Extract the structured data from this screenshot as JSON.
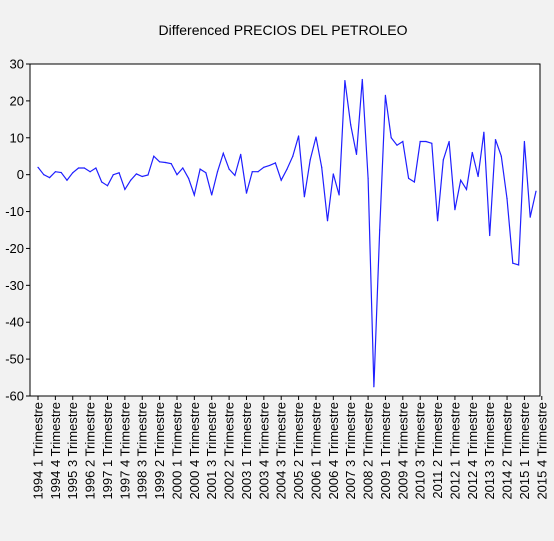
{
  "chart_data": {
    "type": "line",
    "title": "Differenced PRECIOS DEL PETROLEO",
    "xlabel": "",
    "ylabel": "",
    "ylim": [
      -60,
      30
    ],
    "yticks": [
      30,
      20,
      10,
      0,
      -10,
      -20,
      -30,
      -40,
      -50,
      -60
    ],
    "ytick_labels": [
      "30",
      "20",
      "10",
      "0",
      "-10",
      "-20",
      "-30",
      "-40",
      "-50",
      "-60"
    ],
    "grid": false,
    "legend": "none",
    "series_color": "#1f1fff",
    "xtick_labels": [
      "1994 1 Trimestre",
      "1994 4 Trimestre",
      "1995 3 Trimestre",
      "1996 2 Trimestre",
      "1997 1 Trimestre",
      "1997 4 Trimestre",
      "1998 3 Trimestre",
      "1999 2 Trimestre",
      "2000 1 Trimestre",
      "2000 4 Trimestre",
      "2001 3 Trimestre",
      "2002 2 Trimestre",
      "2003 1 Trimestre",
      "2003 4 Trimestre",
      "2004 3 Trimestre",
      "2005 2 Trimestre",
      "2006 1 Trimestre",
      "2006 4 Trimestre",
      "2007 3 Trimestre",
      "2008 2 Trimestre",
      "2009 1 Trimestre",
      "2009 4 Trimestre",
      "2010 3 Trimestre",
      "2011 2 Trimestre",
      "2012 1 Trimestre",
      "2012 4 Trimestre",
      "2013 3 Trimestre",
      "2014 2 Trimestre",
      "2015 1 Trimestre",
      "2015 4 Trimestre"
    ],
    "series": [
      {
        "values": [
          2.0,
          0.0,
          -0.8,
          0.8,
          0.6,
          -1.5,
          0.5,
          1.8,
          1.8,
          0.8,
          1.8,
          -2.0,
          -3.0,
          0.0,
          0.5,
          -4.0,
          -1.5,
          0.2,
          -0.5,
          -0.1,
          5.0,
          3.5,
          3.3,
          3.0,
          0.0,
          1.8,
          -1.0,
          -5.5,
          1.5,
          0.5,
          -5.5,
          0.8,
          5.8,
          1.5,
          -0.2,
          5.5,
          -5.0,
          0.8,
          0.8,
          2.0,
          2.5,
          3.2,
          -1.5,
          1.5,
          5.0,
          10.5,
          -6.0,
          4.0,
          10.2,
          2.0,
          -12.5,
          0.2,
          -5.5,
          25.5,
          13.5,
          5.5,
          25.8,
          -1.0,
          -57.5,
          -15.0,
          21.5,
          10.0,
          8.0,
          9.0,
          -1.0,
          -2.0,
          9.0,
          9.0,
          8.5,
          -12.5,
          4.0,
          9.0,
          -9.5,
          -1.5,
          -4.0,
          6.0,
          -0.5,
          11.5,
          -16.5,
          9.5,
          5.0,
          -6.5,
          -24.0,
          -24.5,
          9.0,
          -11.5,
          -4.5
        ]
      }
    ]
  }
}
